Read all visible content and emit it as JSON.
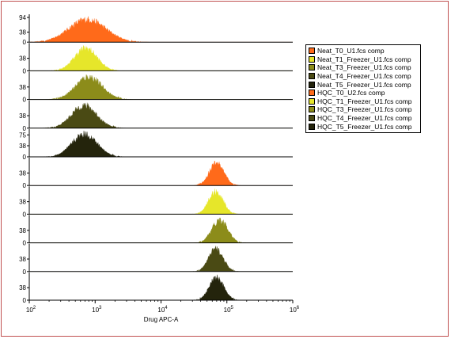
{
  "chart_data": {
    "type": "area",
    "xlabel": "Drug APC-A",
    "x_scale": "log",
    "xlim": [
      100,
      1000000
    ],
    "x_ticks": [
      {
        "value": 100,
        "base": "10",
        "exp": "2"
      },
      {
        "value": 1000,
        "base": "10",
        "exp": "3"
      },
      {
        "value": 10000,
        "base": "10",
        "exp": "4"
      },
      {
        "value": 100000,
        "base": "10",
        "exp": "5"
      },
      {
        "value": 1000000,
        "base": "10",
        "exp": "6"
      }
    ],
    "legend_position": "right",
    "series": [
      {
        "name": "Neat_T0_U1.fcs comp",
        "color": "#ff6a1a",
        "peak": 760,
        "width_decades": 0.28,
        "ymax": 100,
        "yticks": [
          "94",
          "38",
          "0"
        ],
        "ytick_values": [
          94,
          38,
          0
        ]
      },
      {
        "name": "Neat_T1_Freezer_U1.fcs comp",
        "color": "#e6e62a",
        "peak": 720,
        "width_decades": 0.17,
        "ymax": 80,
        "yticks": [
          "38",
          "0"
        ],
        "ytick_values": [
          38,
          0
        ]
      },
      {
        "name": "Neat_T3_Freezer_U1.fcs comp",
        "color": "#8c8c1a",
        "peak": 800,
        "width_decades": 0.2,
        "ymax": 80,
        "yticks": [
          "38",
          "0"
        ],
        "ytick_values": [
          38,
          0
        ]
      },
      {
        "name": "Neat_T4_Freezer_U1.fcs comp",
        "color": "#4a4a14",
        "peak": 680,
        "width_decades": 0.19,
        "ymax": 80,
        "yticks": [
          "38",
          "0"
        ],
        "ytick_values": [
          38,
          0
        ]
      },
      {
        "name": "Neat_T5_Freezer_U1.fcs comp",
        "color": "#24240c",
        "peak": 690,
        "width_decades": 0.19,
        "ymax": 90,
        "yticks": [
          "75",
          "38",
          "0"
        ],
        "ytick_values": [
          75,
          38,
          0
        ]
      },
      {
        "name": "HQC_T0_U2.fcs comp",
        "color": "#ff6a1a",
        "peak": 70000,
        "width_decades": 0.11,
        "ymax": 80,
        "yticks": [
          "38",
          "0"
        ],
        "ytick_values": [
          38,
          0
        ]
      },
      {
        "name": "HQC_T1_Freezer_U1.fcs comp",
        "color": "#e6e62a",
        "peak": 68000,
        "width_decades": 0.11,
        "ymax": 80,
        "yticks": [
          "38",
          "0"
        ],
        "ytick_values": [
          38,
          0
        ]
      },
      {
        "name": "HQC_T3_Freezer_U1.fcs comp",
        "color": "#8c8c1a",
        "peak": 78000,
        "width_decades": 0.12,
        "ymax": 80,
        "yticks": [
          "38",
          "0"
        ],
        "ytick_values": [
          38,
          0
        ]
      },
      {
        "name": "HQC_T4_Freezer_U1.fcs comp",
        "color": "#4a4a14",
        "peak": 68000,
        "width_decades": 0.11,
        "ymax": 80,
        "yticks": [
          "38",
          "0"
        ],
        "ytick_values": [
          38,
          0
        ]
      },
      {
        "name": "HQC_T5_Freezer_U1.fcs comp",
        "color": "#24240c",
        "peak": 70000,
        "width_decades": 0.11,
        "ymax": 80,
        "yticks": [
          "38",
          "0"
        ],
        "ytick_values": [
          38,
          0
        ]
      }
    ]
  }
}
